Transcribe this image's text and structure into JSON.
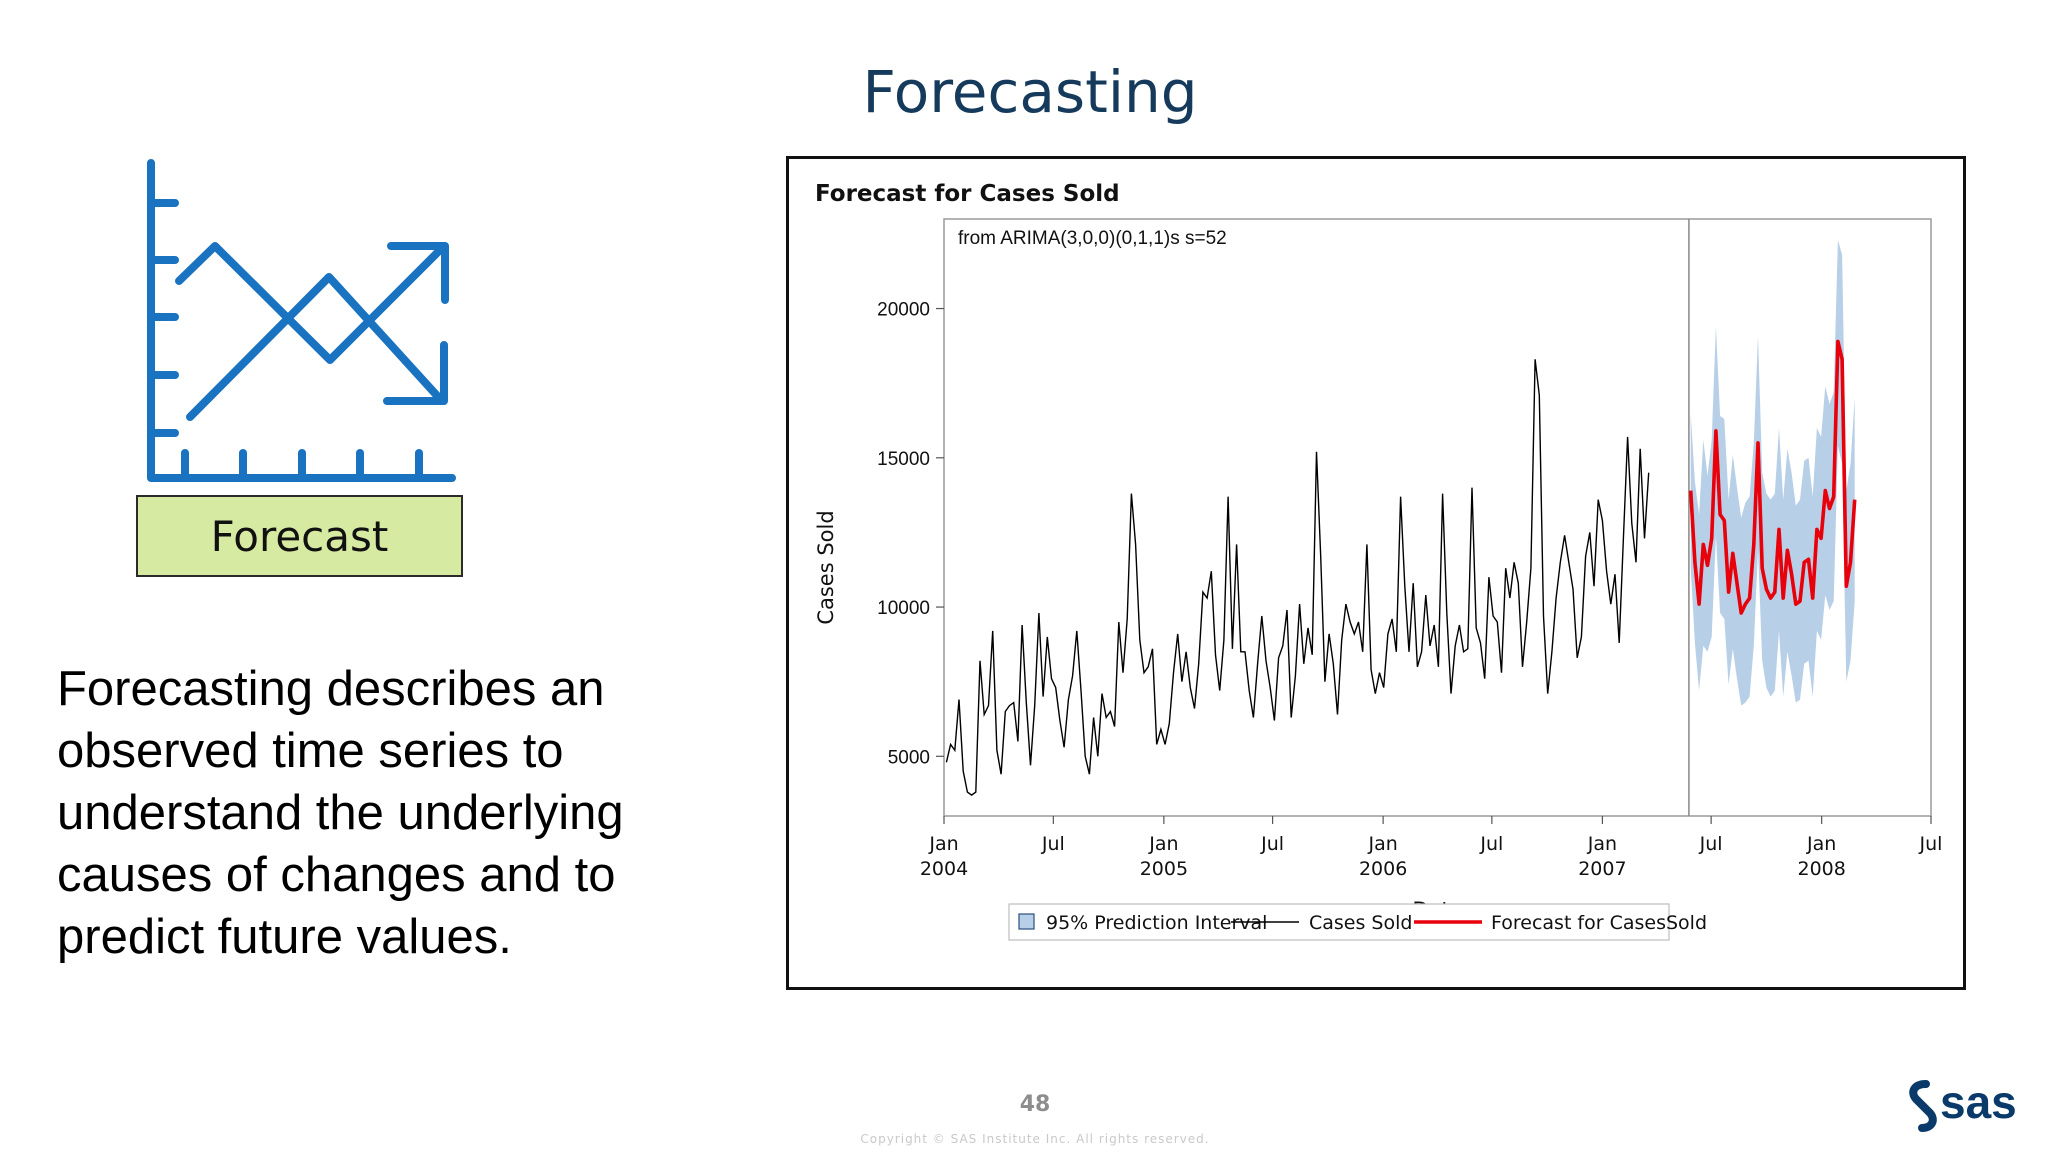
{
  "slide": {
    "title": "Forecasting",
    "icon_label": "Forecast",
    "description": "Forecasting describes an observed time series to understand the underlying causes of changes and to predict future values.",
    "page_number": "48",
    "copyright": "Copyright © SAS Institute Inc. All rights reserved.",
    "logo_text": "sas",
    "accent_color": "#1a73c0",
    "title_color": "#163a5c",
    "box_color": "#d7eaa2"
  },
  "chart_data": {
    "type": "line",
    "title": "Forecast for Cases Sold",
    "annotation": "from ARIMA(3,0,0)(0,1,1)s  s=52",
    "xlabel": "Date",
    "ylabel": "Cases Sold",
    "yticks": [
      5000,
      10000,
      15000,
      20000
    ],
    "ylim": [
      3000,
      23000
    ],
    "xlim": [
      "2004-01-01",
      "2008-07-01"
    ],
    "xticks": [
      {
        "date": "2004-01-01",
        "line1": "Jan",
        "line2": "2004"
      },
      {
        "date": "2004-07-01",
        "line1": "Jul",
        "line2": ""
      },
      {
        "date": "2005-01-01",
        "line1": "Jan",
        "line2": "2005"
      },
      {
        "date": "2005-07-01",
        "line1": "Jul",
        "line2": ""
      },
      {
        "date": "2006-01-01",
        "line1": "Jan",
        "line2": "2006"
      },
      {
        "date": "2006-07-01",
        "line1": "Jul",
        "line2": ""
      },
      {
        "date": "2007-01-01",
        "line1": "Jan",
        "line2": "2007"
      },
      {
        "date": "2007-07-01",
        "line1": "Jul",
        "line2": ""
      },
      {
        "date": "2008-01-01",
        "line1": "Jan",
        "line2": "2008"
      },
      {
        "date": "2008-07-01",
        "line1": "Jul",
        "line2": ""
      }
    ],
    "forecast_start": "2007-05-25",
    "legend": [
      "95% Prediction Interval",
      "Cases Sold",
      "Forecast for CasesSold"
    ],
    "colors": {
      "observed": "#000000",
      "forecast": "#e8000b",
      "interval": "#b8cfe8"
    },
    "series": [
      {
        "name": "Cases Sold",
        "start": "2004-01-05",
        "step_days": 7,
        "values": [
          4800,
          5400,
          5200,
          6900,
          4500,
          3800,
          3700,
          3800,
          8200,
          6400,
          6700,
          9200,
          5200,
          4400,
          6500,
          6700,
          6800,
          5500,
          9400,
          6800,
          4700,
          6700,
          9800,
          7000,
          9000,
          7600,
          7300,
          6200,
          5300,
          6900,
          7700,
          9200,
          7200,
          5000,
          4400,
          6300,
          5000,
          7100,
          6300,
          6500,
          6000,
          9500,
          7800,
          9600,
          13800,
          12100,
          8900,
          7800,
          8000,
          8600,
          5400,
          5900,
          5400,
          6100,
          7800,
          9100,
          7500,
          8500,
          7300,
          6600,
          8100,
          10500,
          10300,
          11200,
          8400,
          7200,
          8900,
          13700,
          8600,
          12100,
          8500,
          8500,
          7200,
          6300,
          8100,
          9700,
          8200,
          7300,
          6200,
          8300,
          8700,
          9900,
          6300,
          7700,
          10100,
          8100,
          9300,
          8400,
          15200,
          11700,
          7500,
          9100,
          8100,
          6400,
          8900,
          10100,
          9500,
          9100,
          9500,
          8500,
          12100,
          7900,
          7100,
          7800,
          7300,
          9100,
          9600,
          8500,
          13700,
          10700,
          8500,
          10800,
          8000,
          8500,
          10400,
          8700,
          9400,
          8000,
          13800,
          9800,
          7100,
          8700,
          9400,
          8500,
          8600,
          14000,
          9300,
          8800,
          7600,
          11000,
          9700,
          9500,
          7800,
          11300,
          10300,
          11500,
          10800,
          8000,
          9500,
          11300,
          18300,
          17100,
          9700,
          7100,
          8500,
          10300,
          11500,
          12400,
          11500,
          10600,
          8300,
          9000,
          11700,
          12500,
          10700,
          13600,
          12900,
          11200,
          10100,
          11100,
          8800,
          12300,
          15700,
          12800,
          11500,
          15300,
          12300,
          14500
        ]
      },
      {
        "name": "Forecast for CasesSold",
        "start": "2007-05-28",
        "step_days": 7,
        "values": [
          13900,
          11500,
          10100,
          12100,
          11400,
          12300,
          15900,
          13100,
          12900,
          10500,
          11800,
          10800,
          9800,
          10100,
          10300,
          12100,
          15500,
          11300,
          10600,
          10300,
          10500,
          12600,
          10300,
          11900,
          11100,
          10100,
          10200,
          11500,
          11600,
          10300,
          12600,
          12300,
          13900,
          13300,
          13700,
          18900,
          18300,
          10700,
          11500,
          13600
        ],
        "lower": [
          11300,
          8800,
          7200,
          8700,
          8500,
          9000,
          12400,
          9800,
          9600,
          7400,
          8600,
          7600,
          6700,
          6800,
          7000,
          8700,
          11900,
          8200,
          7300,
          7000,
          7200,
          9200,
          7000,
          8500,
          7700,
          6800,
          6900,
          8100,
          8200,
          7000,
          9200,
          8900,
          10400,
          9900,
          10200,
          15400,
          14800,
          7500,
          8200,
          10200
        ],
        "upper": [
          16500,
          14200,
          13100,
          15600,
          14400,
          15600,
          19400,
          16400,
          16300,
          13600,
          15100,
          14000,
          13000,
          13500,
          13700,
          15500,
          19100,
          14500,
          13800,
          13600,
          13800,
          16000,
          13600,
          15300,
          14500,
          13400,
          13600,
          14900,
          15000,
          13700,
          16000,
          15700,
          17400,
          16800,
          17200,
          22300,
          21800,
          13900,
          14800,
          17000
        ]
      }
    ]
  }
}
